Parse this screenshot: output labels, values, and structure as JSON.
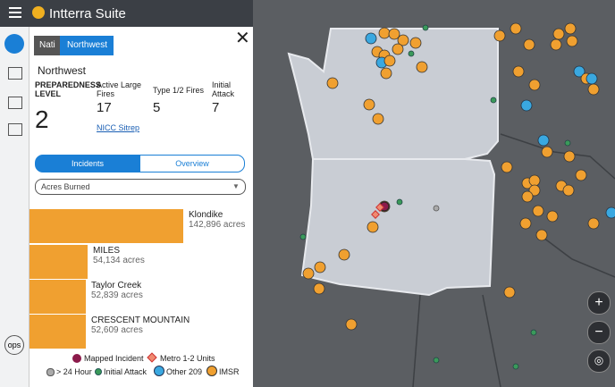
{
  "header": {
    "app_title": "Intterra Suite"
  },
  "breadcrumb": [
    "Nati",
    "Northwest"
  ],
  "region": "Northwest",
  "stats": [
    {
      "label": "PREPAREDNESS LEVEL",
      "value": "2"
    },
    {
      "label": "Active Large Fires",
      "value": "17"
    },
    {
      "label": "Type 1/2 Fires",
      "value": "5"
    },
    {
      "label": "Initial Attack",
      "value": "7"
    }
  ],
  "link": "NICC Sitrep",
  "tabs": [
    "Incidents",
    "Overview"
  ],
  "dropdown": "Acres Burned",
  "incidents": [
    {
      "name": "Klondike",
      "acres": "142,896 acres"
    },
    {
      "name": "MILES",
      "acres": "54,134 acres"
    },
    {
      "name": "Taylor Creek",
      "acres": "52,839 acres"
    },
    {
      "name": "CRESCENT MOUNTAIN",
      "acres": "52,609 acres"
    }
  ],
  "legend": [
    "Mapped Incident",
    "Metro 1-2 Units",
    "> 24 Hour",
    "Initial Attack",
    "Other 209",
    "IMSR"
  ],
  "sidebar": {
    "ops": "ops"
  },
  "map_controls": [
    "+",
    "−"
  ]
}
